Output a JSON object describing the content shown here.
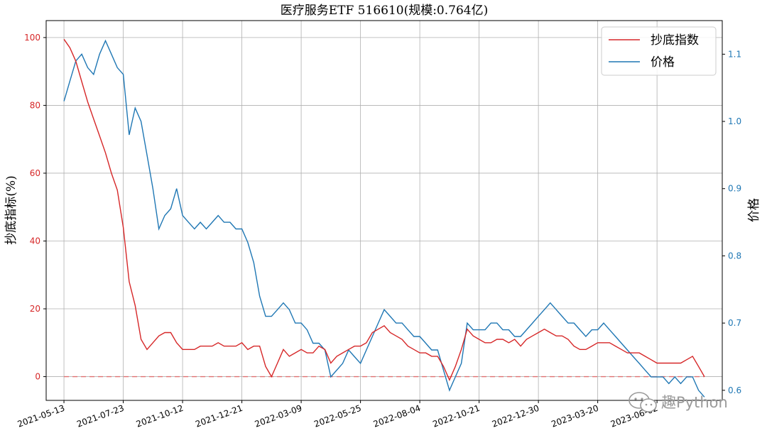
{
  "chart_data": {
    "type": "line",
    "title": "医疗服务ETF  516610(规模:0.764亿)",
    "ylabel_left": "抄底指标(%)",
    "ylabel_right": "价格",
    "ylim_left": [
      -7,
      105
    ],
    "ylim_right": [
      0.585,
      1.15
    ],
    "yticks_left": [
      0,
      20,
      40,
      60,
      80,
      100
    ],
    "yticks_right": [
      0.6,
      0.7,
      0.8,
      0.9,
      1.0,
      1.1
    ],
    "yticks_right_labels": [
      "0.6",
      "0.7",
      "0.8",
      "0.9",
      "1.0",
      "1.1"
    ],
    "x_range": [
      -3,
      111
    ],
    "xtick_positions": [
      0,
      10,
      20,
      30,
      40,
      50,
      60,
      70,
      80,
      90,
      100
    ],
    "xticks": [
      "2021-05-13",
      "2021-07-23",
      "2021-10-12",
      "2021-12-21",
      "2022-03-09",
      "2022-05-25",
      "2022-08-04",
      "2022-10-21",
      "2022-12-30",
      "2023-03-20",
      "2023-06-02"
    ],
    "grid": true,
    "legend_position": "top-right",
    "baseline": 0,
    "series": [
      {
        "name": "抄底指数",
        "axis": "left",
        "color": "#d62728",
        "x": [
          0,
          1,
          2,
          3,
          4,
          5,
          6,
          7,
          8,
          9,
          10,
          11,
          12,
          13,
          14,
          15,
          16,
          17,
          18,
          19,
          20,
          21,
          22,
          23,
          24,
          25,
          26,
          27,
          28,
          29,
          30,
          31,
          32,
          33,
          34,
          35,
          36,
          37,
          38,
          39,
          40,
          41,
          42,
          43,
          44,
          45,
          46,
          47,
          48,
          49,
          50,
          51,
          52,
          53,
          54,
          55,
          56,
          57,
          58,
          59,
          60,
          61,
          62,
          63,
          64,
          65,
          66,
          67,
          68,
          69,
          70,
          71,
          72,
          73,
          74,
          75,
          76,
          77,
          78,
          79,
          80,
          81,
          82,
          83,
          84,
          85,
          86,
          87,
          88,
          89,
          90,
          91,
          92,
          93,
          94,
          95,
          96,
          97,
          98,
          99,
          100,
          101,
          102,
          103,
          104,
          105,
          106,
          107,
          108
        ],
        "values": [
          99.5,
          97,
          93,
          87,
          81,
          76,
          71,
          66,
          60,
          55,
          44,
          28,
          21,
          11,
          8,
          10,
          12,
          13,
          13,
          10,
          8,
          8,
          8,
          9,
          9,
          9,
          10,
          9,
          9,
          9,
          10,
          8,
          9,
          9,
          3,
          0,
          4,
          8,
          6,
          7,
          8,
          7,
          7,
          9,
          8,
          4,
          6,
          7,
          8,
          9,
          9,
          10,
          13,
          14,
          15,
          13,
          12,
          11,
          9,
          8,
          7,
          7,
          6,
          6,
          3,
          -1,
          3,
          8,
          14,
          12,
          11,
          10,
          10,
          11,
          11,
          10,
          11,
          9,
          11,
          12,
          13,
          14,
          13,
          12,
          12,
          11,
          9,
          8,
          8,
          9,
          10,
          10,
          10,
          9,
          8,
          7,
          7,
          7,
          6,
          5,
          4,
          4,
          4,
          4,
          4,
          5,
          6,
          3,
          0
        ]
      },
      {
        "name": "价格",
        "axis": "right",
        "color": "#1f77b4",
        "x": [
          0,
          1,
          2,
          3,
          4,
          5,
          6,
          7,
          8,
          9,
          10,
          11,
          12,
          13,
          14,
          15,
          16,
          17,
          18,
          19,
          20,
          21,
          22,
          23,
          24,
          25,
          26,
          27,
          28,
          29,
          30,
          31,
          32,
          33,
          34,
          35,
          36,
          37,
          38,
          39,
          40,
          41,
          42,
          43,
          44,
          45,
          46,
          47,
          48,
          49,
          50,
          51,
          52,
          53,
          54,
          55,
          56,
          57,
          58,
          59,
          60,
          61,
          62,
          63,
          64,
          65,
          66,
          67,
          68,
          69,
          70,
          71,
          72,
          73,
          74,
          75,
          76,
          77,
          78,
          79,
          80,
          81,
          82,
          83,
          84,
          85,
          86,
          87,
          88,
          89,
          90,
          91,
          92,
          93,
          94,
          95,
          96,
          97,
          98,
          99,
          100,
          101,
          102,
          103,
          104,
          105,
          106,
          107,
          108
        ],
        "values": [
          1.03,
          1.06,
          1.09,
          1.1,
          1.08,
          1.07,
          1.1,
          1.12,
          1.1,
          1.08,
          1.07,
          0.98,
          1.02,
          1.0,
          0.95,
          0.9,
          0.84,
          0.86,
          0.87,
          0.9,
          0.86,
          0.85,
          0.84,
          0.85,
          0.84,
          0.85,
          0.86,
          0.85,
          0.85,
          0.84,
          0.84,
          0.82,
          0.79,
          0.74,
          0.71,
          0.71,
          0.72,
          0.73,
          0.72,
          0.7,
          0.7,
          0.69,
          0.67,
          0.67,
          0.66,
          0.62,
          0.63,
          0.64,
          0.66,
          0.65,
          0.64,
          0.66,
          0.68,
          0.7,
          0.72,
          0.71,
          0.7,
          0.7,
          0.69,
          0.68,
          0.68,
          0.67,
          0.66,
          0.66,
          0.63,
          0.6,
          0.62,
          0.64,
          0.7,
          0.69,
          0.69,
          0.69,
          0.7,
          0.7,
          0.69,
          0.69,
          0.68,
          0.68,
          0.69,
          0.7,
          0.71,
          0.72,
          0.73,
          0.72,
          0.71,
          0.7,
          0.7,
          0.69,
          0.68,
          0.69,
          0.69,
          0.7,
          0.69,
          0.68,
          0.67,
          0.66,
          0.65,
          0.64,
          0.63,
          0.62,
          0.62,
          0.62,
          0.61,
          0.62,
          0.61,
          0.62,
          0.62,
          0.6,
          0.59
        ]
      }
    ]
  },
  "watermark": {
    "text": "趣Python"
  }
}
